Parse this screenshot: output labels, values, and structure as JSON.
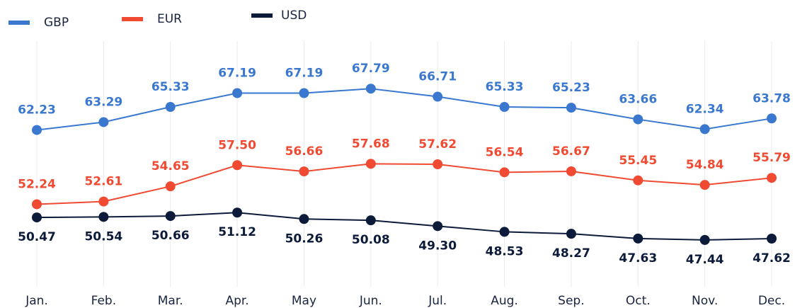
{
  "chart_data": {
    "type": "line",
    "categories": [
      "Jan.",
      "Feb.",
      "Mar.",
      "Apr.",
      "May",
      "Jun.",
      "Jul.",
      "Aug.",
      "Sep.",
      "Oct.",
      "Nov.",
      "Dec."
    ],
    "series": [
      {
        "name": "GBP",
        "color": "#3a78d0",
        "values": [
          62.23,
          63.29,
          65.33,
          67.19,
          67.19,
          67.79,
          66.71,
          65.33,
          65.23,
          63.66,
          62.34,
          63.78
        ],
        "value_labels": [
          "62.23",
          "63.29",
          "65.33",
          "67.19",
          "67.19",
          "67.79",
          "66.71",
          "65.33",
          "65.23",
          "63.66",
          "62.34",
          "63.78"
        ]
      },
      {
        "name": "EUR",
        "color": "#f04a32",
        "values": [
          52.24,
          52.61,
          54.65,
          57.5,
          56.66,
          57.68,
          57.62,
          56.54,
          56.67,
          55.45,
          54.84,
          55.79
        ],
        "value_labels": [
          "52.24",
          "52.61",
          "54.65",
          "57.50",
          "56.66",
          "57.68",
          "57.62",
          "56.54",
          "56.67",
          "55.45",
          "54.84",
          "55.79"
        ]
      },
      {
        "name": "USD",
        "color": "#0d1b3a",
        "values": [
          50.47,
          50.54,
          50.66,
          51.12,
          50.26,
          50.08,
          49.3,
          48.53,
          48.27,
          47.63,
          47.44,
          47.62
        ],
        "value_labels": [
          "50.47",
          "50.54",
          "50.66",
          "51.12",
          "50.26",
          "50.08",
          "49.30",
          "48.53",
          "48.27",
          "47.63",
          "47.44",
          "47.62"
        ]
      }
    ],
    "ylim": [
      42,
      74
    ],
    "grid": true,
    "legend": "top-left"
  }
}
